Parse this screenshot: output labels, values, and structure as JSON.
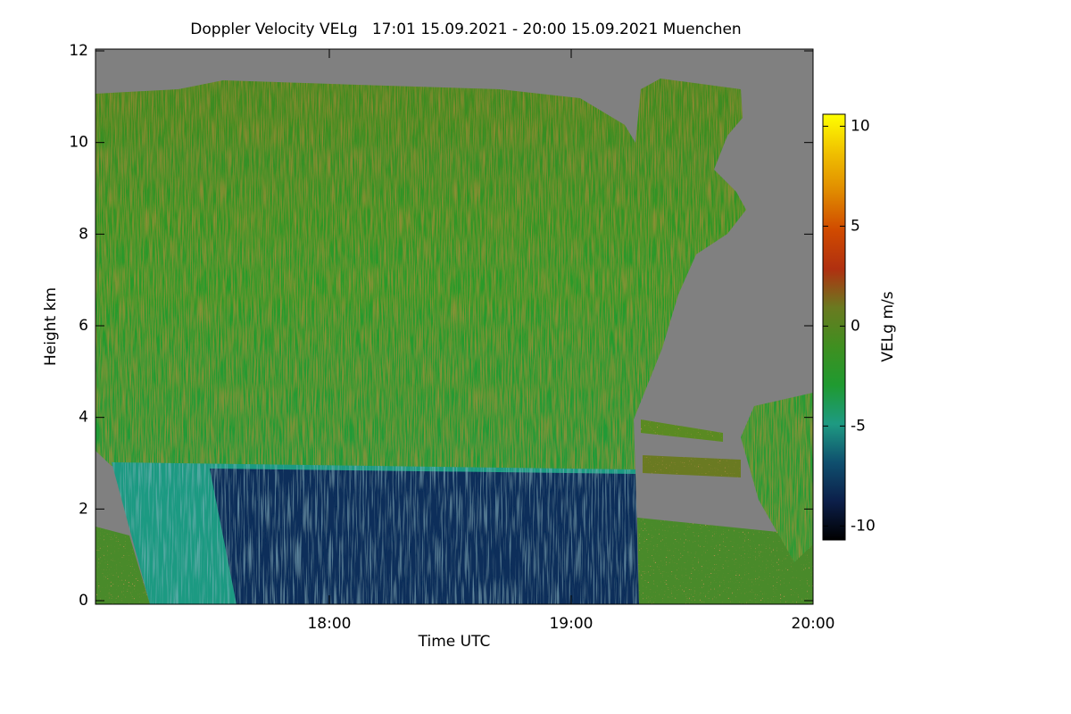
{
  "chart_data": {
    "type": "heatmap",
    "title": "Doppler Velocity VELg   17:01 15.09.2021 - 20:00 15.09.2021 Muenchen",
    "x_label": "Time UTC",
    "y_label": "Height km",
    "xlim": [
      17.0333,
      20.0
    ],
    "xticks": [
      {
        "value": 18,
        "label": "18:00"
      },
      {
        "value": 19,
        "label": "19:00"
      },
      {
        "value": 20,
        "label": "20:00"
      }
    ],
    "ylim": [
      0,
      12
    ],
    "yticks": [
      0,
      2,
      4,
      6,
      8,
      10,
      12
    ],
    "colorbar": {
      "label": "VELg m/s",
      "lim": [
        -10.7,
        10.6
      ],
      "ticks": [
        -10,
        -5,
        0,
        5,
        10
      ],
      "colors": [
        "#000000",
        "#0c1f4a",
        "#0f4f6e",
        "#1e9a82",
        "#1f9a30",
        "#3f8f20",
        "#6a7a20",
        "#b03010",
        "#d04a00",
        "#e08a00",
        "#f0c000",
        "#ffff00"
      ]
    },
    "background_color": "#808080"
  }
}
